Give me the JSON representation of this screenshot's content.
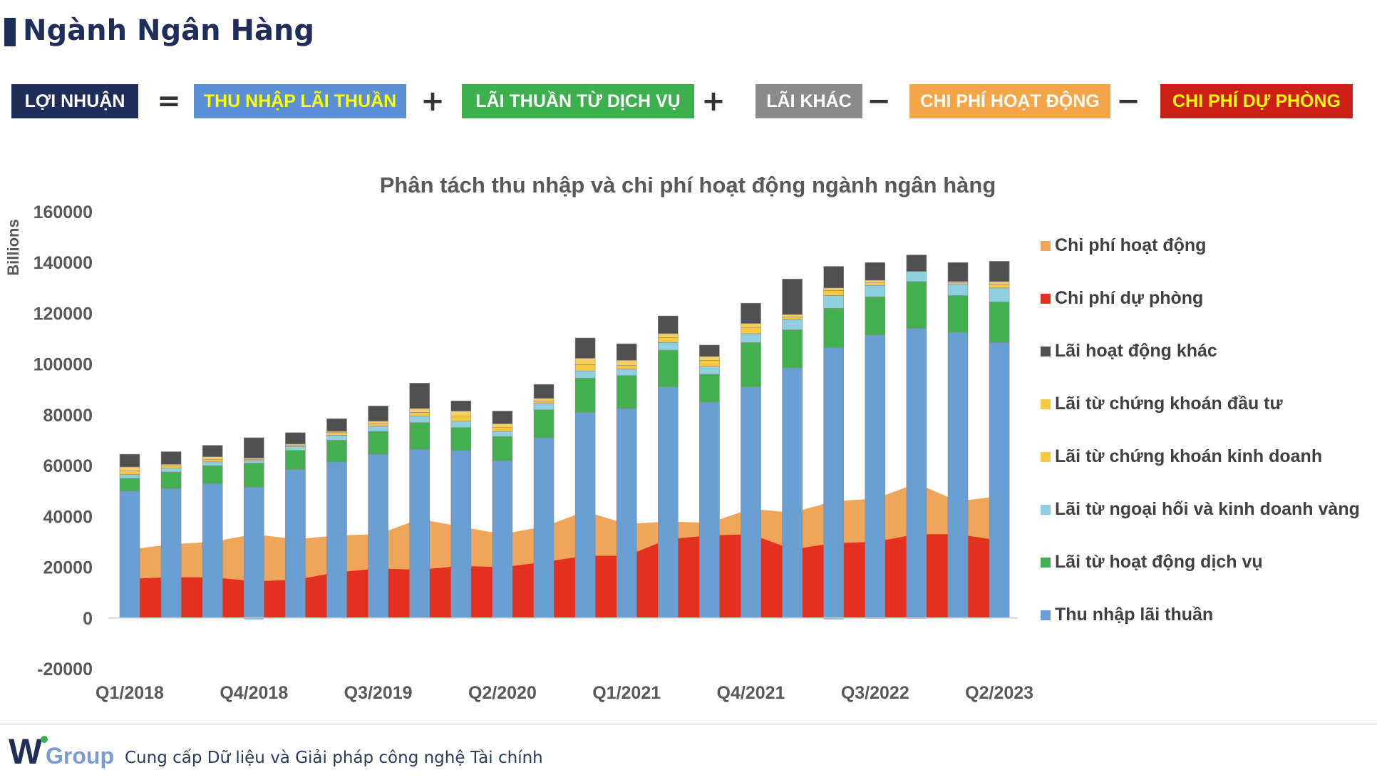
{
  "page_title": "Ngành Ngân Hàng",
  "formula": [
    {
      "kind": "box",
      "label": "LỢI NHUẬN",
      "bg": "#1f2d5a",
      "fg": "#ffffff"
    },
    {
      "kind": "op",
      "label": "="
    },
    {
      "kind": "box",
      "label": "THU NHẬP LÃI THUẦN",
      "bg": "#5b8fd6",
      "fg": "#ffff00"
    },
    {
      "kind": "op",
      "label": "+"
    },
    {
      "kind": "box",
      "label": "LÃI THUẦN TỪ DỊCH VỤ",
      "bg": "#3cb04c",
      "fg": "#ffffff"
    },
    {
      "kind": "op",
      "label": "+"
    },
    {
      "kind": "box",
      "label": "LÃI KHÁC",
      "bg": "#8a8a8a",
      "fg": "#ffffff"
    },
    {
      "kind": "op",
      "label": "−"
    },
    {
      "kind": "box",
      "label": "CHI PHÍ HOẠT ĐỘNG",
      "bg": "#f4a547",
      "fg": "#ffffff"
    },
    {
      "kind": "op",
      "label": "−"
    },
    {
      "kind": "box",
      "label": "CHI PHÍ DỰ PHÒNG",
      "bg": "#cc1f16",
      "fg": "#ffff00"
    }
  ],
  "chart_data": {
    "type": "bar",
    "subtype": "stacked-with-areas",
    "title": "Phân tách thu nhập và chi phí hoạt động ngành ngân hàng",
    "ylabel": "Billions",
    "ylim": [
      -20000,
      160000
    ],
    "yticks": [
      160000,
      140000,
      120000,
      100000,
      80000,
      60000,
      40000,
      20000,
      0,
      -20000
    ],
    "categories": [
      "Q1/2018",
      "Q2/2018",
      "Q3/2018",
      "Q4/2018",
      "Q1/2019",
      "Q2/2019",
      "Q3/2019",
      "Q4/2019",
      "Q1/2020",
      "Q2/2020",
      "Q3/2020",
      "Q4/2020",
      "Q1/2021",
      "Q2/2021",
      "Q3/2021",
      "Q4/2021",
      "Q1/2022",
      "Q2/2022",
      "Q3/2022",
      "Q4/2022",
      "Q1/2023",
      "Q2/2023"
    ],
    "xtick_labels": [
      "Q1/2018",
      "Q4/2018",
      "Q3/2019",
      "Q2/2020",
      "Q1/2021",
      "Q4/2021",
      "Q3/2022",
      "Q2/2023"
    ],
    "bar_series": [
      {
        "name": "Thu nhập lãi thuần",
        "color": "#6a9fd4",
        "values": [
          50000,
          51000,
          53000,
          51500,
          58500,
          61500,
          64500,
          66500,
          66000,
          62000,
          71000,
          81000,
          82500,
          91000,
          85000,
          91000,
          98500,
          106500,
          111500,
          114000,
          112500,
          108500
        ]
      },
      {
        "name": "Lãi từ hoạt động dịch vụ",
        "color": "#42b04f",
        "values": [
          5000,
          6500,
          7000,
          9500,
          7500,
          8500,
          9000,
          10500,
          9000,
          9500,
          11000,
          13500,
          13000,
          14500,
          11000,
          17500,
          15000,
          15500,
          15000,
          18500,
          14500,
          16000
        ]
      },
      {
        "name": "Lãi từ ngoại hối và kinh doanh vàng",
        "color": "#8ed0e0",
        "values": [
          1500,
          1500,
          1500,
          1000,
          1500,
          2000,
          2000,
          2500,
          2500,
          2000,
          2500,
          2800,
          2500,
          3000,
          3000,
          3500,
          4000,
          5000,
          4500,
          4000,
          4500,
          5500
        ]
      },
      {
        "name": "Lãi từ chứng khoán kinh doanh",
        "color": "#f5c842",
        "values": [
          1500,
          1000,
          1000,
          500,
          500,
          1000,
          1000,
          1500,
          2000,
          1500,
          1000,
          2500,
          1500,
          2000,
          2500,
          2500,
          1000,
          2000,
          1000,
          0,
          500,
          1500
        ]
      },
      {
        "name": "Lãi từ chứng khoán đầu tư",
        "color": "#f7d060",
        "values": [
          1500,
          500,
          1000,
          500,
          500,
          500,
          1000,
          1500,
          2000,
          1500,
          1000,
          2500,
          2000,
          1500,
          1500,
          1500,
          1000,
          1000,
          1000,
          0,
          500,
          1000
        ]
      },
      {
        "name": "Lãi hoạt động khác",
        "color": "#505050",
        "values": [
          5000,
          5000,
          4500,
          8000,
          4500,
          5000,
          6000,
          10000,
          4000,
          5000,
          5500,
          8000,
          6500,
          7000,
          4500,
          8000,
          14000,
          8500,
          7000,
          6500,
          7500,
          8000
        ]
      }
    ],
    "area_series": [
      {
        "name": "Chi phí hoạt động",
        "color": "#f0a65a",
        "values": [
          27000,
          29000,
          30000,
          33000,
          31000,
          32500,
          33000,
          39000,
          36000,
          33000,
          36000,
          42000,
          37000,
          38000,
          37500,
          43000,
          41500,
          46000,
          47000,
          53000,
          46000,
          48000
        ]
      },
      {
        "name": "Chi phí dự phòng",
        "color": "#e4301e",
        "values": [
          15500,
          16000,
          16000,
          14500,
          15000,
          18000,
          19500,
          19000,
          20500,
          20000,
          22000,
          24500,
          24500,
          31000,
          32500,
          33000,
          27000,
          29500,
          30000,
          33000,
          33000,
          30500
        ]
      }
    ],
    "negative_hints": [
      0,
      0,
      0,
      -500,
      0,
      0,
      0,
      0,
      0,
      0,
      0,
      0,
      0,
      0,
      0,
      0,
      0,
      -500,
      -300,
      -300,
      0,
      0
    ],
    "legend": [
      "Chi phí hoạt động",
      "Chi phí dự phòng",
      "Lãi hoạt động khác",
      "Lãi từ chứng khoán đầu tư",
      "Lãi từ chứng khoán kinh doanh",
      "Lãi từ ngoại hối và kinh doanh vàng",
      "Lãi từ hoạt động dịch vụ",
      "Thu nhập lãi thuần"
    ],
    "legend_colors": [
      "#f0a65a",
      "#e4301e",
      "#505050",
      "#f5c842",
      "#f5c842",
      "#8ed0e0",
      "#42b04f",
      "#6a9fd4"
    ],
    "legend_position": "right",
    "grid": false
  },
  "footer": {
    "logo_text": "Group",
    "logo_letter": "W",
    "tagline": "Cung cấp Dữ liệu và Giải pháp công nghệ Tài chính"
  }
}
